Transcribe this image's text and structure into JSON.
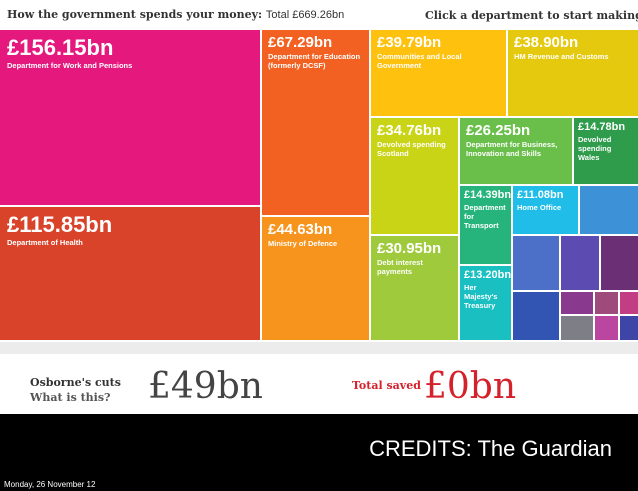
{
  "header": {
    "title": "How the government spends your money:",
    "total": "Total £669.26bn",
    "cta": "Click a department to start making cuts",
    "cta_icon": "scissors-icon"
  },
  "treemap": {
    "dwp": {
      "amount": "£156.15bn",
      "dept": "Department for Work and Pensions",
      "color": "#e5197d"
    },
    "health": {
      "amount": "£115.85bn",
      "dept": "Department of Health",
      "color": "#d8432a"
    },
    "education": {
      "amount": "£67.29bn",
      "dept": "Department for Education (formerly DCSF)",
      "color": "#f26122"
    },
    "defence": {
      "amount": "£44.63bn",
      "dept": "Ministry of Defence",
      "color": "#f7941d"
    },
    "communities": {
      "amount": "£39.79bn",
      "dept": "Communities and Local Government",
      "color": "#fec10e"
    },
    "hmrc": {
      "amount": "£38.90bn",
      "dept": "HM Revenue and Customs",
      "color": "#e5c90e"
    },
    "scotland": {
      "amount": "£34.76bn",
      "dept": "Devolved spending Scotland",
      "color": "#c8d415"
    },
    "debt": {
      "amount": "£30.95bn",
      "dept": "Debt interest payments",
      "color": "#9fca3c"
    },
    "bis": {
      "amount": "£26.25bn",
      "dept": "Department for Business, Innovation and Skills",
      "color": "#6abf4b"
    },
    "wales": {
      "amount": "£14.78bn",
      "dept": "Devolved spending Wales",
      "color": "#2e9c4a"
    },
    "transport": {
      "amount": "£14.39bn",
      "dept": "Department for Transport",
      "color": "#26b47c"
    },
    "home": {
      "amount": "£11.08bn",
      "dept": "Home Office",
      "color": "#1fbde8"
    },
    "treasury": {
      "amount": "£13.20bn",
      "dept": "Her Majesty's Treasury",
      "color": "#19bfc1"
    },
    "small_colors": [
      "#3d92d7",
      "#4c70c7",
      "#5c4bb0",
      "#6a2f75",
      "#3255b3",
      "#3e45a6",
      "#8a3a8e",
      "#9e4a7a",
      "#c23d84",
      "#7e7e86",
      "#bb46a0"
    ]
  },
  "footer": {
    "cuts_title": "Osborne's cuts",
    "cuts_link": "What is this?",
    "cuts_amount": "£49bn",
    "saved_label": "Total saved",
    "saved_amount": "£0bn"
  },
  "overlay": {
    "credits": "CREDITS: The Guardian",
    "date": "Monday, 26 November 12"
  }
}
